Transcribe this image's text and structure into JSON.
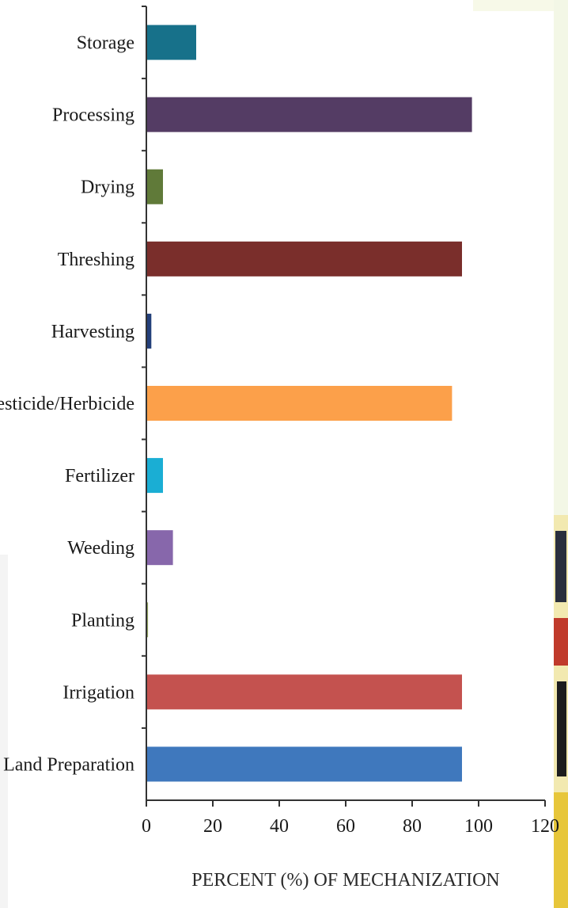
{
  "chart_data": {
    "type": "bar",
    "orientation": "horizontal",
    "categories": [
      "Storage",
      "Processing",
      "Drying",
      "Threshing",
      "Harvesting",
      "Pesticide/Herbicide",
      "Fertilizer",
      "Weeding",
      "Planting",
      "Irrigation",
      "Land Preparation"
    ],
    "values": [
      15,
      98,
      5,
      95,
      1.5,
      92,
      5,
      8,
      0.5,
      95,
      95
    ],
    "colors": [
      "#17718a",
      "#543c64",
      "#607a39",
      "#7a2e2b",
      "#233f7a",
      "#fca04a",
      "#1aaed4",
      "#8767ab",
      "#8ea05c",
      "#c4524f",
      "#3f78bd"
    ],
    "xlabel": "PERCENT (%) OF MECHANIZATION",
    "xlim": [
      0,
      120
    ],
    "xticks": [
      "0",
      "20",
      "40",
      "60",
      "80",
      "100",
      "120"
    ],
    "grid": false,
    "legend": "none"
  }
}
